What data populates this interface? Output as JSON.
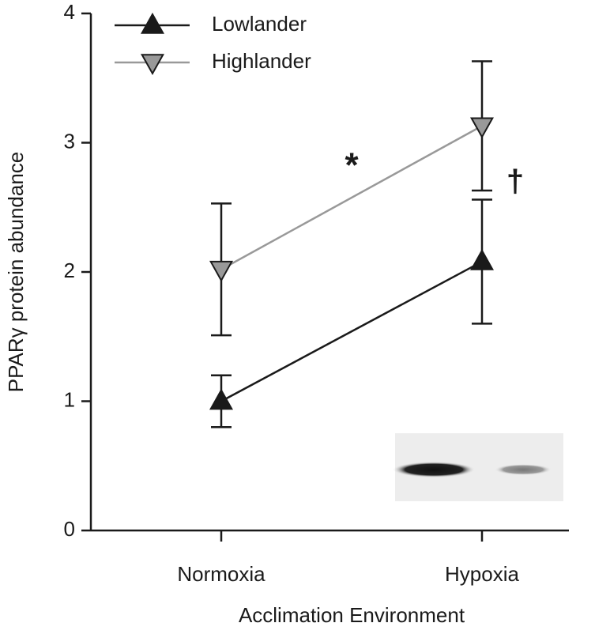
{
  "chart_data": {
    "type": "line",
    "ylabel": "PPARγ protein abundance",
    "xlabel": "Acclimation Environment",
    "categories": [
      "Normoxia",
      "Hypoxia"
    ],
    "series": [
      {
        "name": "Lowlander",
        "color": "#1a1a1a",
        "marker": "triangle-up",
        "values": [
          1.0,
          2.08
        ],
        "errors": [
          0.2,
          0.48
        ]
      },
      {
        "name": "Highlander",
        "color": "#999999",
        "marker": "triangle-down",
        "values": [
          2.02,
          3.13
        ],
        "errors": [
          0.51,
          0.5
        ]
      }
    ],
    "annotations": [
      "*",
      "†"
    ],
    "ylim": [
      0,
      4
    ],
    "yticks": [
      0,
      1,
      2,
      3,
      4
    ],
    "grid": false,
    "legend": "upper left"
  }
}
